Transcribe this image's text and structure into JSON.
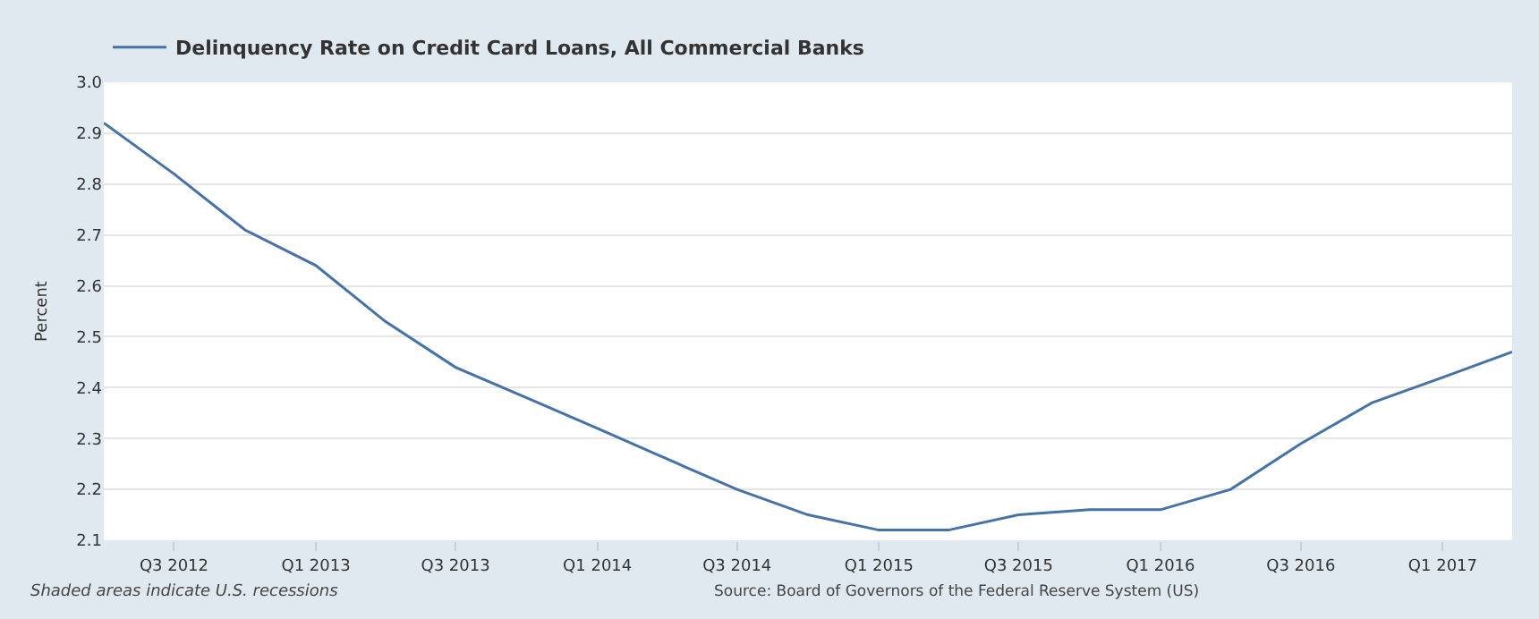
{
  "chart_data": {
    "type": "line",
    "ylabel": "Percent",
    "x": [
      "2012-04-01",
      "2012-07-01",
      "2012-10-01",
      "2013-01-01",
      "2013-04-01",
      "2013-07-01",
      "2013-10-01",
      "2014-01-01",
      "2014-04-01",
      "2014-07-01",
      "2014-10-01",
      "2015-01-01",
      "2015-04-01",
      "2015-07-01",
      "2015-10-01",
      "2016-01-01",
      "2016-04-01",
      "2016-07-01",
      "2016-10-01",
      "2017-01-01",
      "2017-04-01"
    ],
    "series": [
      {
        "name": "Delinquency Rate on Credit Card Loans, All Commercial Banks",
        "color": "#4572a7",
        "values": [
          2.92,
          2.82,
          2.71,
          2.64,
          2.53,
          2.44,
          2.38,
          2.32,
          2.26,
          2.2,
          2.15,
          2.12,
          2.12,
          2.15,
          2.16,
          2.16,
          2.2,
          2.29,
          2.37,
          2.42,
          2.47
        ]
      }
    ],
    "xlim": [
      "2012-04-01",
      "2017-04-01"
    ],
    "xticks": [
      {
        "value": "2012-07-01",
        "label": "Q3 2012"
      },
      {
        "value": "2013-01-01",
        "label": "Q1 2013"
      },
      {
        "value": "2013-07-01",
        "label": "Q3 2013"
      },
      {
        "value": "2014-01-01",
        "label": "Q1 2014"
      },
      {
        "value": "2014-07-01",
        "label": "Q3 2014"
      },
      {
        "value": "2015-01-01",
        "label": "Q1 2015"
      },
      {
        "value": "2015-07-01",
        "label": "Q3 2015"
      },
      {
        "value": "2016-01-01",
        "label": "Q1 2016"
      },
      {
        "value": "2016-07-01",
        "label": "Q3 2016"
      },
      {
        "value": "2017-01-01",
        "label": "Q1 2017"
      }
    ],
    "ylim": [
      2.1,
      3.0
    ],
    "yticks": [
      2.1,
      2.2,
      2.3,
      2.4,
      2.5,
      2.6,
      2.7,
      2.8,
      2.9,
      {
        "value": 3.0,
        "label": "3.0"
      }
    ],
    "grid": "y",
    "legend": "top left",
    "marker": "none",
    "line_style": "solid",
    "annotations": [
      "Shaded areas indicate U.S. recessions",
      "Source: Board of Governors of the Federal Reserve System (US)"
    ]
  }
}
